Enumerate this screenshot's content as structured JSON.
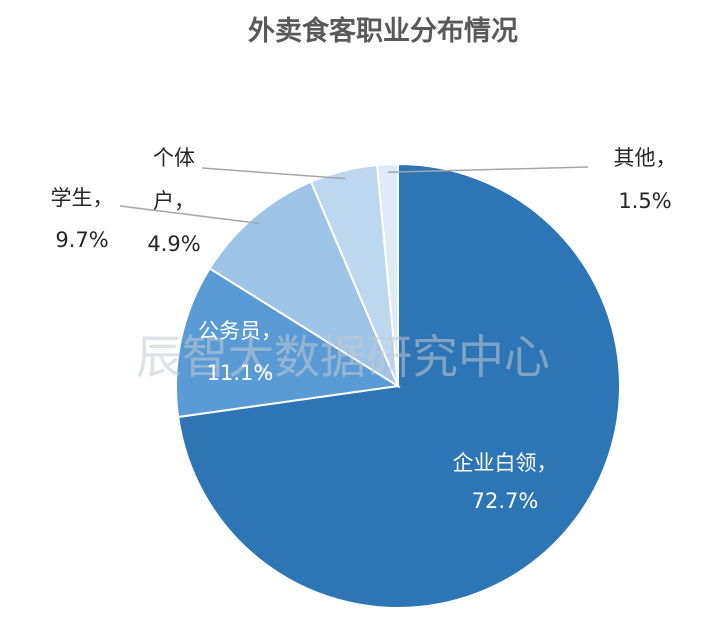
{
  "chart_data": {
    "type": "pie",
    "title": "外卖食客职业分布情况",
    "slices": [
      {
        "label": "企业白领",
        "value": 72.7,
        "display": "72.7%",
        "color": "#2e75b6"
      },
      {
        "label": "公务员",
        "value": 11.1,
        "display": "11.1%",
        "color": "#5b9bd5"
      },
      {
        "label": "学生",
        "value": 9.7,
        "display": "9.7%",
        "color": "#9dc3e6"
      },
      {
        "label": "个体户",
        "value": 4.9,
        "display": "4.9%",
        "color": "#bdd7ee"
      },
      {
        "label": "其他",
        "value": 1.5,
        "display": "1.5%",
        "color": "#deebf7"
      }
    ]
  },
  "watermark": "辰智大数据研究中心"
}
